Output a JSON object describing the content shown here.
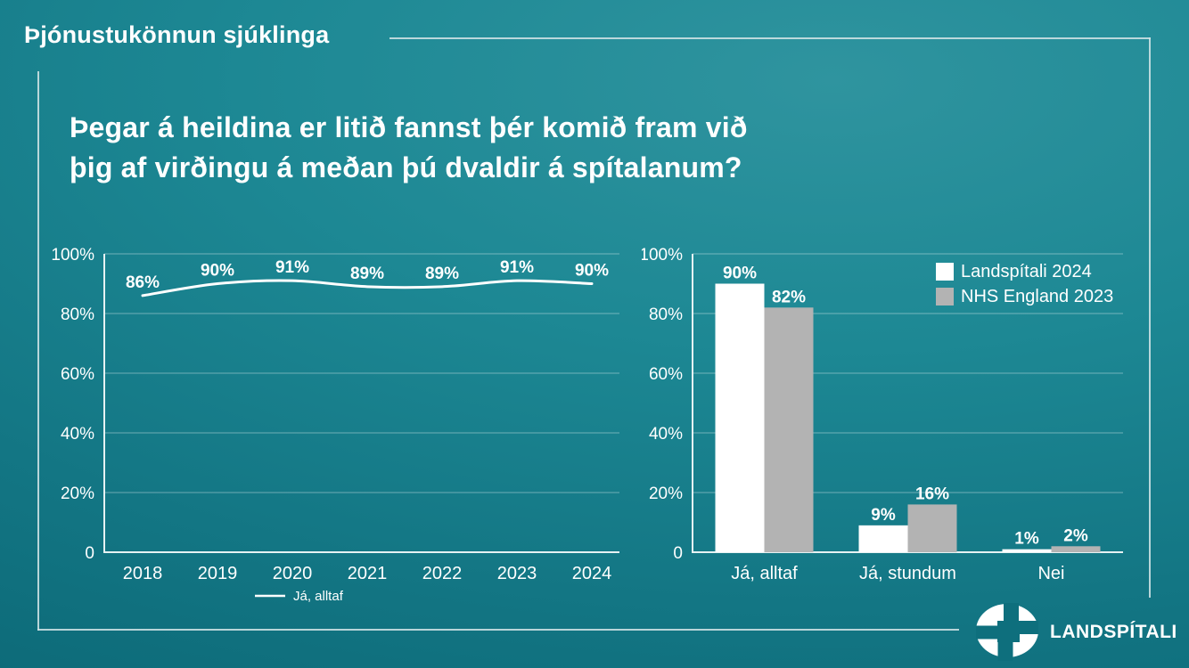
{
  "header": {
    "title": "Þjónustukönnun sjúklinga"
  },
  "question": {
    "line1": "Þegar á heildina er litið fannst þér komið fram við",
    "line2": "þig af virðingu á meðan þú dvaldir á spítalanum?"
  },
  "chart_data": [
    {
      "type": "line",
      "x": [
        "2018",
        "2019",
        "2020",
        "2021",
        "2022",
        "2023",
        "2024"
      ],
      "series": [
        {
          "name": "Já, alltaf",
          "values": [
            86,
            90,
            91,
            89,
            89,
            91,
            90
          ],
          "color": "#ffffff"
        }
      ],
      "data_labels": [
        "86%",
        "90%",
        "91%",
        "89%",
        "89%",
        "91%",
        "90%"
      ],
      "y_ticks": [
        "100%",
        "80%",
        "60%",
        "40%",
        "20%",
        "0"
      ],
      "y_tick_values": [
        100,
        80,
        60,
        40,
        20,
        0
      ],
      "ylim": [
        0,
        100
      ],
      "grid": true,
      "legend_position": "bottom-center"
    },
    {
      "type": "bar",
      "categories": [
        "Já, alltaf",
        "Já, stundum",
        "Nei"
      ],
      "series": [
        {
          "name": "Landspítali 2024",
          "values": [
            90,
            9,
            1
          ],
          "labels": [
            "90%",
            "9%",
            "1%"
          ],
          "color": "#ffffff"
        },
        {
          "name": "NHS England 2023",
          "values": [
            82,
            16,
            2
          ],
          "labels": [
            "82%",
            "16%",
            "2%"
          ],
          "color": "#b3b3b3"
        }
      ],
      "y_ticks": [
        "100%",
        "80%",
        "60%",
        "40%",
        "20%",
        "0"
      ],
      "y_tick_values": [
        100,
        80,
        60,
        40,
        20,
        0
      ],
      "ylim": [
        0,
        100
      ],
      "grid": true,
      "legend_position": "top-right"
    }
  ],
  "logo": {
    "text": "LANDSPÍTALI",
    "icon": "landspitali-cross-icon"
  },
  "colors": {
    "background": "#17818d",
    "bar_gray": "#b3b3b3",
    "line_white": "#ffffff",
    "frame": "#cfe3e5",
    "grid": "rgba(255,255,255,0.38)",
    "logo_cross": "#0e6f7d"
  }
}
